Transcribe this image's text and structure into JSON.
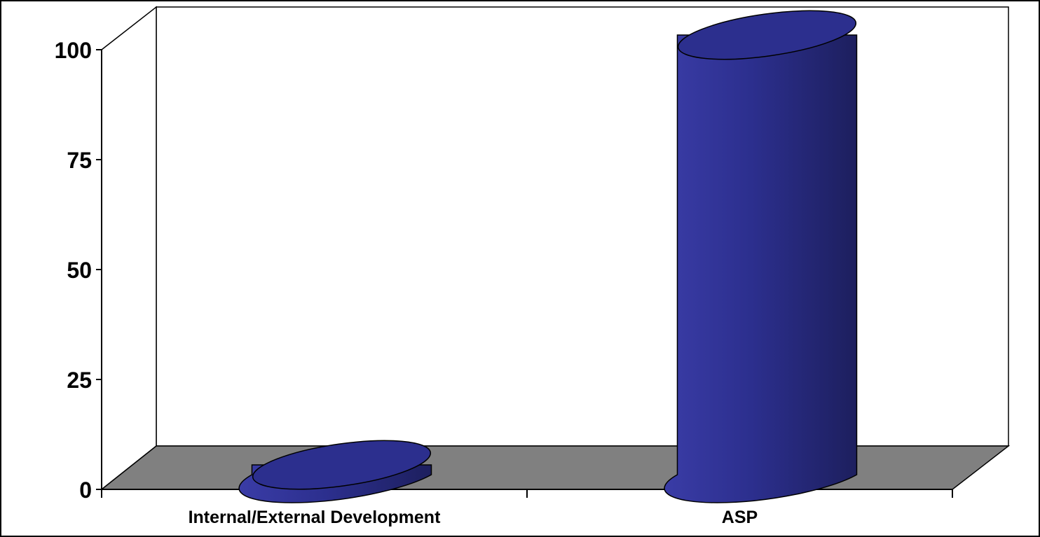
{
  "chart_data": {
    "type": "bar",
    "style": "3d-cylinder",
    "categories": [
      "Internal/External Development",
      "ASP"
    ],
    "series": [
      {
        "values": [
          0,
          100
        ],
        "color": "#2c2f8e"
      }
    ],
    "y_ticks": [
      "0",
      "25",
      "50",
      "75",
      "100"
    ],
    "ylim": [
      0,
      100
    ],
    "floor_color": "#808080",
    "grid": false,
    "legend": "none"
  }
}
